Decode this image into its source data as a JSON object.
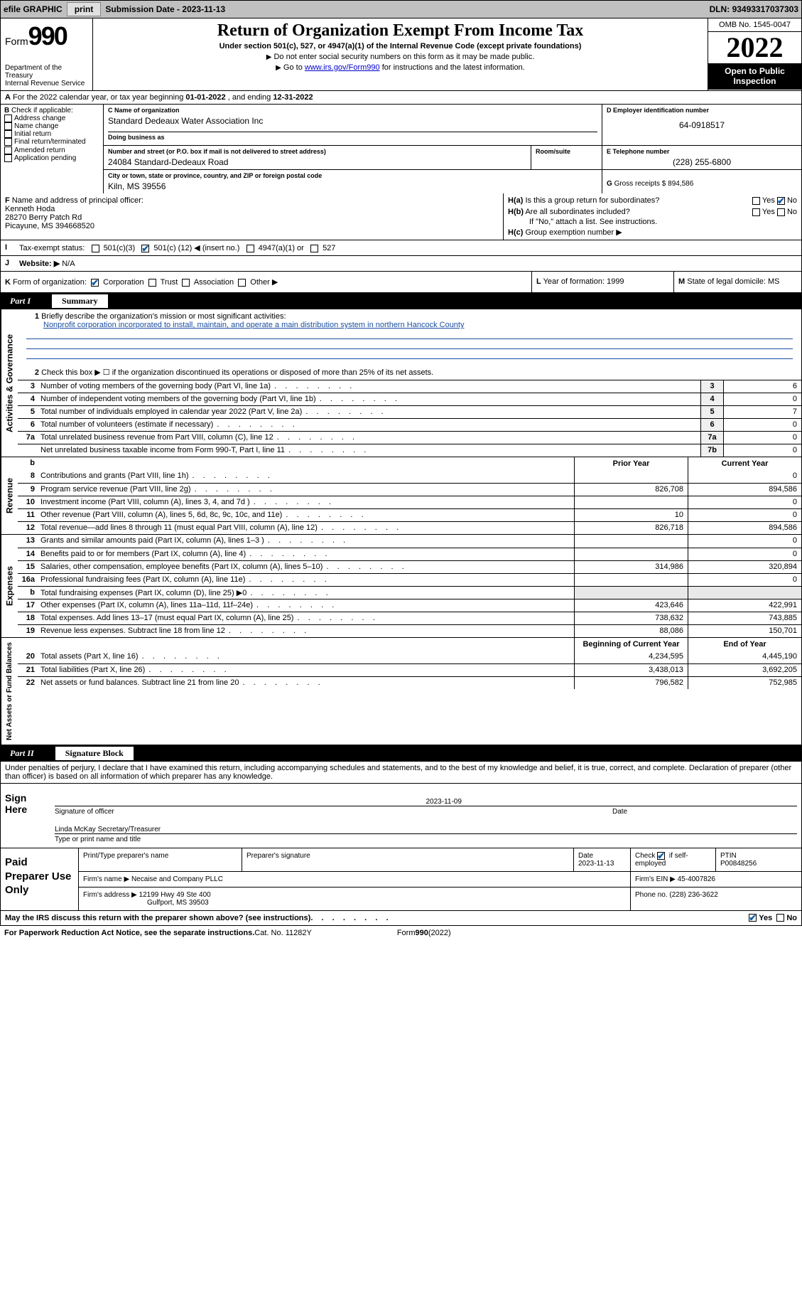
{
  "topbar": {
    "efile": "efile GRAPHIC",
    "print": "print",
    "submission_label": "Submission Date - ",
    "submission_date": "2023-11-13",
    "dln_label": "DLN: ",
    "dln": "93493317037303"
  },
  "header": {
    "form_word": "Form",
    "form_num": "990",
    "dept": "Department of the Treasury",
    "irs": "Internal Revenue Service",
    "title": "Return of Organization Exempt From Income Tax",
    "sub": "Under section 501(c), 527, or 4947(a)(1) of the Internal Revenue Code (except private foundations)",
    "line1": "Do not enter social security numbers on this form as it may be made public.",
    "line2_pre": "Go to ",
    "line2_link": "www.irs.gov/Form990",
    "line2_post": " for instructions and the latest information.",
    "omb": "OMB No. 1545-0047",
    "year": "2022",
    "open": "Open to Public Inspection"
  },
  "rowA": {
    "label": "A",
    "text_pre": "For the 2022 calendar year, or tax year beginning ",
    "begin": "01-01-2022",
    "mid": " , and ending ",
    "end": "12-31-2022"
  },
  "colB": {
    "lbl": "B",
    "check_if": "Check if applicable:",
    "addr": "Address change",
    "name": "Name change",
    "initial": "Initial return",
    "final": "Final return/terminated",
    "amended": "Amended return",
    "app": "Application pending"
  },
  "colC": {
    "lbl": "C",
    "name_lbl": "Name of organization",
    "name": "Standard Dedeaux Water Association Inc",
    "dba_lbl": "Doing business as",
    "dba": "",
    "addr_lbl": "Number and street (or P.O. box if mail is not delivered to street address)",
    "room_lbl": "Room/suite",
    "addr": "24084 Standard-Dedeaux Road",
    "city_lbl": "City or town, state or province, country, and ZIP or foreign postal code",
    "city": "Kiln, MS  39556"
  },
  "colD": {
    "lbl": "D",
    "ein_lbl": "Employer identification number",
    "ein": "64-0918517",
    "e_lbl": "E",
    "tel_lbl": "Telephone number",
    "tel": "(228) 255-6800",
    "g_lbl": "G",
    "gross_lbl": "Gross receipts $",
    "gross": "894,586"
  },
  "secF": {
    "lbl": "F",
    "name_lbl": "Name and address of principal officer:",
    "name": "Kenneth Hoda",
    "addr1": "28270 Berry Patch Rd",
    "addr2": "Picayune, MS  394668520",
    "ha_lbl": "H(a)",
    "ha_q": "Is this a group return for subordinates?",
    "hb_lbl": "H(b)",
    "hb_q": "Are all subordinates included?",
    "hb_note": "If \"No,\" attach a list. See instructions.",
    "hc_lbl": "H(c)",
    "hc_q": "Group exemption number ▶",
    "yes": "Yes",
    "no": "No"
  },
  "rowI": {
    "lbl": "I",
    "txt": "Tax-exempt status:",
    "o1": "501(c)(3)",
    "o2_pre": "501(c) (",
    "o2_num": "12",
    "o2_post": ") ◀ (insert no.)",
    "o3": "4947(a)(1) or",
    "o4": "527"
  },
  "rowJ": {
    "lbl": "J",
    "txt": "Website: ▶",
    "val": "N/A"
  },
  "rowK": {
    "lbl": "K",
    "txt": "Form of organization:",
    "o1": "Corporation",
    "o2": "Trust",
    "o3": "Association",
    "o4": "Other ▶",
    "l_lbl": "L",
    "l_txt": "Year of formation: ",
    "l_val": "1999",
    "m_lbl": "M",
    "m_txt": "State of legal domicile: ",
    "m_val": "MS"
  },
  "part1": {
    "num": "Part I",
    "title": "Summary"
  },
  "gov": {
    "tab": "Activities & Governance",
    "l1_num": "1",
    "l1": "Briefly describe the organization's mission or most significant activities:",
    "l1_mission": "Nonprofit corporation incorporated to install, maintain, and operate a main distribution system in northern Hancock County",
    "l2_num": "2",
    "l2": "Check this box ▶ ☐  if the organization discontinued its operations or disposed of more than 25% of its net assets.",
    "l3_num": "3",
    "l3": "Number of voting members of the governing body (Part VI, line 1a)",
    "l3v": "6",
    "l4_num": "4",
    "l4": "Number of independent voting members of the governing body (Part VI, line 1b)",
    "l4v": "0",
    "l5_num": "5",
    "l5": "Total number of individuals employed in calendar year 2022 (Part V, line 2a)",
    "l5v": "7",
    "l6_num": "6",
    "l6": "Total number of volunteers (estimate if necessary)",
    "l6v": "0",
    "l7a_num": "7a",
    "l7a": "Total unrelated business revenue from Part VIII, column (C), line 12",
    "l7av": "0",
    "l7b_num": "",
    "l7b": "Net unrelated business taxable income from Form 990-T, Part I, line 11",
    "l7bv": "0",
    "box3": "3",
    "box4": "4",
    "box5": "5",
    "box6": "6",
    "box7a": "7a",
    "box7b": "7b"
  },
  "rev": {
    "tab": "Revenue",
    "hdr_b": "b",
    "hdr_prior": "Prior Year",
    "hdr_curr": "Current Year",
    "rows": [
      {
        "n": "8",
        "d": "Contributions and grants (Part VIII, line 1h)",
        "p": "",
        "c": "0"
      },
      {
        "n": "9",
        "d": "Program service revenue (Part VIII, line 2g)",
        "p": "826,708",
        "c": "894,586"
      },
      {
        "n": "10",
        "d": "Investment income (Part VIII, column (A), lines 3, 4, and 7d )",
        "p": "",
        "c": "0"
      },
      {
        "n": "11",
        "d": "Other revenue (Part VIII, column (A), lines 5, 6d, 8c, 9c, 10c, and 11e)",
        "p": "10",
        "c": "0"
      },
      {
        "n": "12",
        "d": "Total revenue—add lines 8 through 11 (must equal Part VIII, column (A), line 12)",
        "p": "826,718",
        "c": "894,586"
      }
    ]
  },
  "exp": {
    "tab": "Expenses",
    "rows": [
      {
        "n": "13",
        "d": "Grants and similar amounts paid (Part IX, column (A), lines 1–3 )",
        "p": "",
        "c": "0"
      },
      {
        "n": "14",
        "d": "Benefits paid to or for members (Part IX, column (A), line 4)",
        "p": "",
        "c": "0"
      },
      {
        "n": "15",
        "d": "Salaries, other compensation, employee benefits (Part IX, column (A), lines 5–10)",
        "p": "314,986",
        "c": "320,894"
      },
      {
        "n": "16a",
        "d": "Professional fundraising fees (Part IX, column (A), line 11e)",
        "p": "",
        "c": "0"
      },
      {
        "n": "b",
        "d": "Total fundraising expenses (Part IX, column (D), line 25) ▶0",
        "p": "",
        "c": "",
        "shade": true
      },
      {
        "n": "17",
        "d": "Other expenses (Part IX, column (A), lines 11a–11d, 11f–24e)",
        "p": "423,646",
        "c": "422,991"
      },
      {
        "n": "18",
        "d": "Total expenses. Add lines 13–17 (must equal Part IX, column (A), line 25)",
        "p": "738,632",
        "c": "743,885"
      },
      {
        "n": "19",
        "d": "Revenue less expenses. Subtract line 18 from line 12",
        "p": "88,086",
        "c": "150,701"
      }
    ]
  },
  "net": {
    "tab": "Net Assets or Fund Balances",
    "hdr_begin": "Beginning of Current Year",
    "hdr_end": "End of Year",
    "rows": [
      {
        "n": "20",
        "d": "Total assets (Part X, line 16)",
        "p": "4,234,595",
        "c": "4,445,190"
      },
      {
        "n": "21",
        "d": "Total liabilities (Part X, line 26)",
        "p": "3,438,013",
        "c": "3,692,205"
      },
      {
        "n": "22",
        "d": "Net assets or fund balances. Subtract line 21 from line 20",
        "p": "796,582",
        "c": "752,985"
      }
    ]
  },
  "part2": {
    "num": "Part II",
    "title": "Signature Block"
  },
  "sig": {
    "decl": "Under penalties of perjury, I declare that I have examined this return, including accompanying schedules and statements, and to the best of my knowledge and belief, it is true, correct, and complete. Declaration of preparer (other than officer) is based on all information of which preparer has any knowledge.",
    "sign_here": "Sign Here",
    "sig_officer": "Signature of officer",
    "date_lbl": "Date",
    "date": "2023-11-09",
    "name": "Linda McKay  Secretary/Treasurer",
    "name_lbl": "Type or print name and title"
  },
  "prep": {
    "title": "Paid Preparer Use Only",
    "print_lbl": "Print/Type preparer's name",
    "sig_lbl": "Preparer's signature",
    "date_lbl": "Date",
    "date": "2023-11-13",
    "check_lbl": "Check",
    "self_emp": "if self-employed",
    "ptin_lbl": "PTIN",
    "ptin": "P00848256",
    "firm_name_lbl": "Firm's name   ▶",
    "firm_name": "Necaise and Company PLLC",
    "firm_ein_lbl": "Firm's EIN ▶",
    "firm_ein": "45-4007826",
    "firm_addr_lbl": "Firm's address ▶",
    "firm_addr1": "12199 Hwy 49 Ste 400",
    "firm_addr2": "Gulfport, MS  39503",
    "phone_lbl": "Phone no. ",
    "phone": "(228) 236-3622"
  },
  "footer": {
    "discuss": "May the IRS discuss this return with the preparer shown above? (see instructions)",
    "yes": "Yes",
    "no": "No",
    "paperwork": "For Paperwork Reduction Act Notice, see the separate instructions.",
    "cat": "Cat. No. 11282Y",
    "form": "Form ",
    "form990": "990",
    "year": " (2022)"
  }
}
